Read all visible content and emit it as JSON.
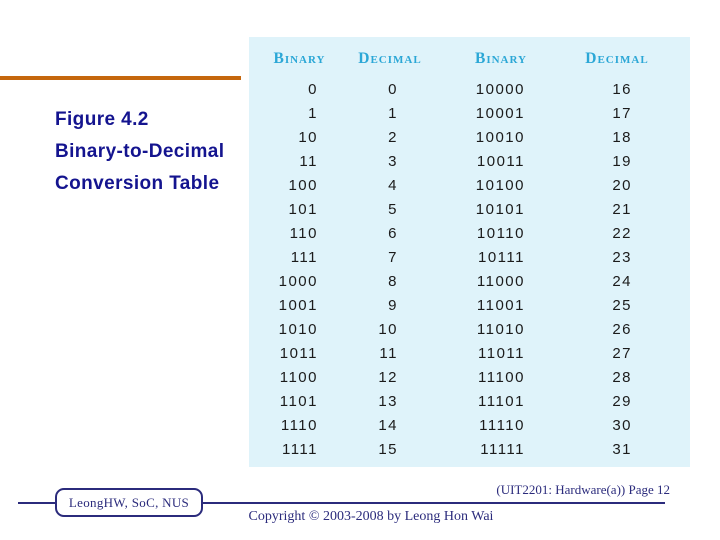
{
  "colors": {
    "accent-orange": "#c5670d",
    "title-navy": "#14148f",
    "footer-navy": "#2b2b7c",
    "table-bg": "#dff3fa",
    "table-header-cyan": "#2ba7d6",
    "digit-black": "#1b1b1b"
  },
  "title": {
    "line1": "Figure 4.2",
    "line2": "Binary-to-Decimal",
    "line3": "Conversion Table"
  },
  "table": {
    "headers": [
      "Binary",
      "Decimal",
      "Binary",
      "Decimal"
    ],
    "rows": [
      [
        "0",
        "0",
        "10000",
        "16"
      ],
      [
        "1",
        "1",
        "10001",
        "17"
      ],
      [
        "10",
        "2",
        "10010",
        "18"
      ],
      [
        "11",
        "3",
        "10011",
        "19"
      ],
      [
        "100",
        "4",
        "10100",
        "20"
      ],
      [
        "101",
        "5",
        "10101",
        "21"
      ],
      [
        "110",
        "6",
        "10110",
        "22"
      ],
      [
        "111",
        "7",
        "10111",
        "23"
      ],
      [
        "1000",
        "8",
        "11000",
        "24"
      ],
      [
        "1001",
        "9",
        "11001",
        "25"
      ],
      [
        "1010",
        "10",
        "11010",
        "26"
      ],
      [
        "1011",
        "11",
        "11011",
        "27"
      ],
      [
        "1100",
        "12",
        "11100",
        "28"
      ],
      [
        "1101",
        "13",
        "11101",
        "29"
      ],
      [
        "1110",
        "14",
        "11110",
        "30"
      ],
      [
        "1111",
        "15",
        "11111",
        "31"
      ]
    ]
  },
  "footer": {
    "author_box_label": "LeongHW, SoC, NUS",
    "course_page_label": "(UIT2201: Hardware(a)) Page 12",
    "copyright_label": "Copyright © 2003-2008 by Leong Hon Wai"
  }
}
